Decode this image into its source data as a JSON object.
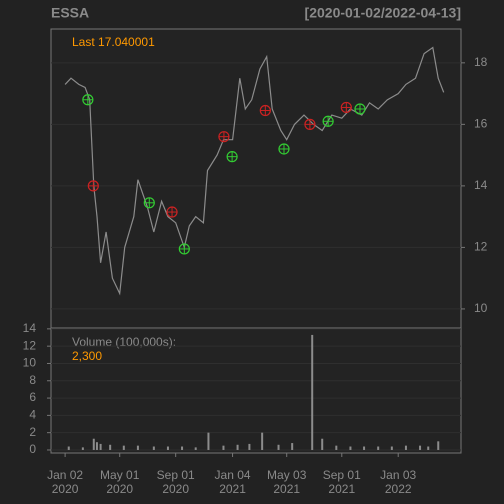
{
  "chart_data": {
    "type": "line",
    "title": "ESSA",
    "subtitle": "[2020-01-02/2022-04-13]",
    "last_label": "Last 17.040001",
    "x": [
      "2020-01-02",
      "2020-01-15",
      "2020-02-01",
      "2020-02-15",
      "2020-02-25",
      "2020-03-05",
      "2020-03-12",
      "2020-03-20",
      "2020-04-01",
      "2020-04-15",
      "2020-05-01",
      "2020-05-12",
      "2020-06-01",
      "2020-06-10",
      "2020-07-01",
      "2020-07-15",
      "2020-08-01",
      "2020-08-15",
      "2020-09-01",
      "2020-09-20",
      "2020-10-01",
      "2020-10-15",
      "2020-11-01",
      "2020-11-10",
      "2020-12-01",
      "2020-12-15",
      "2021-01-04",
      "2021-01-20",
      "2021-02-01",
      "2021-02-15",
      "2021-03-05",
      "2021-03-20",
      "2021-04-01",
      "2021-04-20",
      "2021-05-03",
      "2021-05-20",
      "2021-06-10",
      "2021-07-01",
      "2021-07-20",
      "2021-08-10",
      "2021-09-01",
      "2021-09-20",
      "2021-10-15",
      "2021-11-01",
      "2021-11-20",
      "2021-12-10",
      "2022-01-03",
      "2022-01-20",
      "2022-02-10",
      "2022-03-01",
      "2022-03-20",
      "2022-04-01",
      "2022-04-13"
    ],
    "series": [
      {
        "color": "#8c8c8c",
        "values": [
          17.3,
          17.5,
          17.3,
          17.2,
          16.8,
          14.0,
          13.0,
          11.5,
          12.5,
          11.0,
          10.5,
          12.0,
          13.0,
          14.2,
          13.3,
          12.5,
          13.5,
          13.0,
          12.8,
          12.0,
          12.7,
          13.0,
          12.8,
          14.5,
          15.0,
          15.5,
          15.5,
          17.5,
          16.5,
          16.8,
          17.8,
          18.2,
          16.5,
          15.8,
          15.5,
          16.0,
          16.3,
          16.0,
          15.8,
          16.3,
          16.2,
          16.5,
          16.3,
          16.7,
          16.5,
          16.8,
          17.0,
          17.3,
          17.5,
          18.3,
          18.5,
          17.5,
          17.04
        ]
      }
    ],
    "buy_signals": {
      "color": "#33cc33",
      "x": [
        "2020-02-21",
        "2020-07-05",
        "2020-09-20",
        "2021-01-03",
        "2021-04-27",
        "2021-08-02",
        "2021-10-11"
      ],
      "values": [
        16.8,
        13.45,
        11.95,
        14.95,
        15.2,
        16.1,
        16.5
      ]
    },
    "sell_signals": {
      "color": "#cc2222",
      "x": [
        "2020-03-04",
        "2020-08-24",
        "2020-12-16",
        "2021-03-17",
        "2021-06-23",
        "2021-09-11"
      ],
      "values": [
        14.0,
        13.15,
        15.6,
        16.45,
        16.0,
        16.55
      ]
    },
    "xlim": [
      "2019-12-02",
      "2022-05-21"
    ],
    "xticks": [
      {
        "value": "2020-01-02",
        "label": [
          "Jan 02",
          "2020"
        ]
      },
      {
        "value": "2020-05-01",
        "label": [
          "May 01",
          "2020"
        ]
      },
      {
        "value": "2020-09-01",
        "label": [
          "Sep 01",
          "2020"
        ]
      },
      {
        "value": "2021-01-04",
        "label": [
          "Jan 04",
          "2021"
        ]
      },
      {
        "value": "2021-05-03",
        "label": [
          "May 03",
          "2021"
        ]
      },
      {
        "value": "2021-09-01",
        "label": [
          "Sep 01",
          "2021"
        ]
      },
      {
        "value": "2022-01-03",
        "label": [
          "Jan 03",
          "2022"
        ]
      }
    ],
    "ylim": [
      9.38,
      19.1
    ],
    "yticks": [
      10,
      12,
      14,
      16,
      18
    ],
    "grid": true,
    "volume": {
      "label": "Volume (100,000s):",
      "last_label": "2,300",
      "color": "#8c8c8c",
      "x": [
        "2020-01-10",
        "2020-02-10",
        "2020-03-05",
        "2020-03-12",
        "2020-03-20",
        "2020-04-10",
        "2020-05-10",
        "2020-06-10",
        "2020-07-15",
        "2020-08-15",
        "2020-09-15",
        "2020-10-15",
        "2020-11-12",
        "2020-12-15",
        "2021-01-15",
        "2021-02-10",
        "2021-03-10",
        "2021-04-15",
        "2021-05-15",
        "2021-06-28",
        "2021-07-20",
        "2021-08-20",
        "2021-09-20",
        "2021-10-20",
        "2021-11-20",
        "2021-12-20",
        "2022-01-20",
        "2022-02-20",
        "2022-03-10",
        "2022-04-01"
      ],
      "values": [
        0.4,
        0.3,
        1.3,
        0.9,
        0.7,
        0.6,
        0.5,
        0.5,
        0.4,
        0.4,
        0.4,
        0.3,
        2.0,
        0.5,
        0.6,
        0.7,
        2.0,
        0.6,
        0.8,
        13.3,
        1.3,
        0.5,
        0.4,
        0.4,
        0.4,
        0.4,
        0.5,
        0.5,
        0.4,
        1.0
      ],
      "ylim": [
        -0.35,
        14.1
      ],
      "yticks": [
        0,
        2,
        4,
        6,
        8,
        10,
        12,
        14
      ]
    }
  }
}
